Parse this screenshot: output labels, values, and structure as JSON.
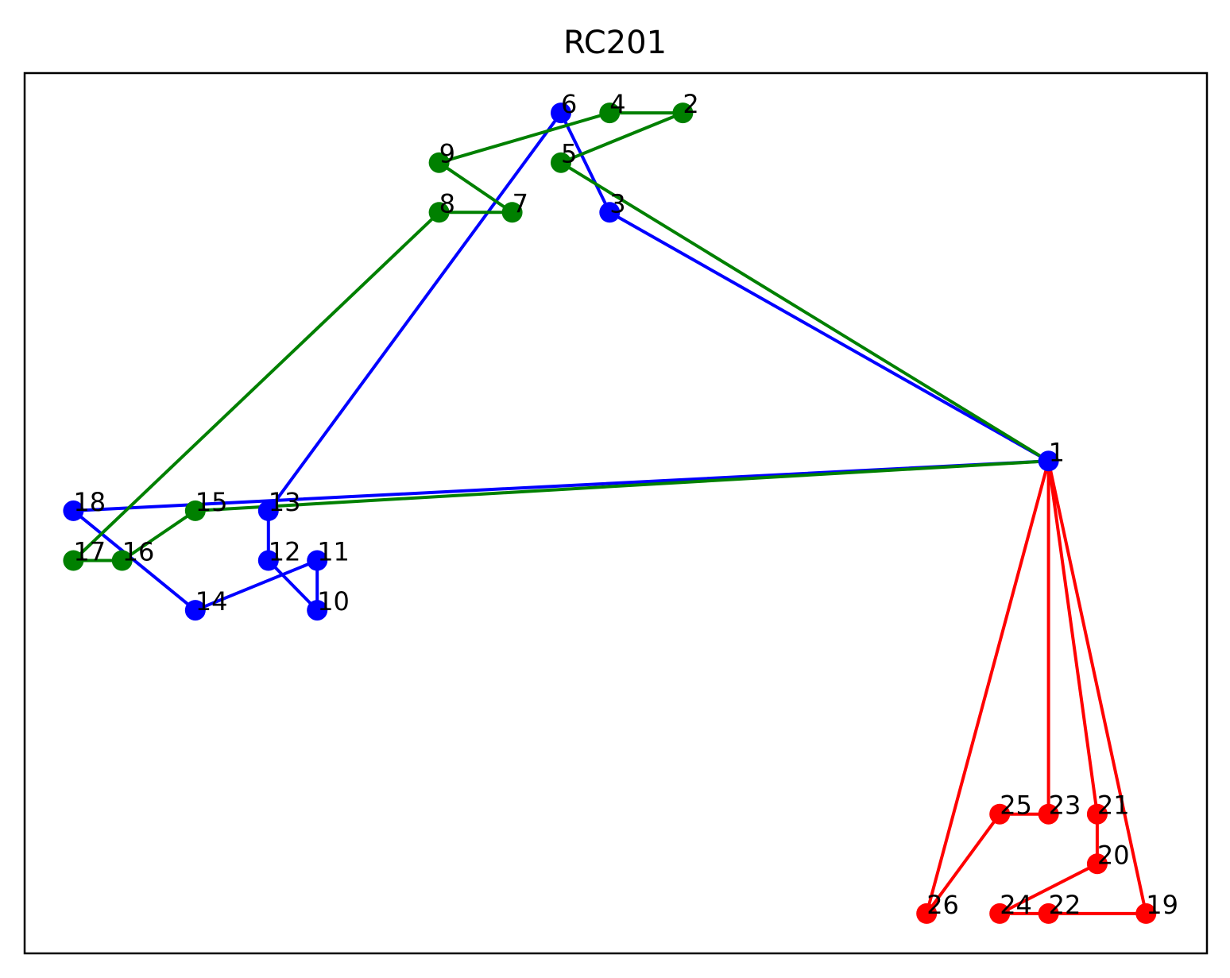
{
  "chart_data": {
    "type": "line",
    "title": "RC201",
    "xlabel": "",
    "ylabel": "",
    "xlim": [
      0,
      48.5
    ],
    "ylim": [
      0,
      17.7
    ],
    "grid": false,
    "axis_ticks": false,
    "nodes": [
      {
        "id": "1",
        "x": 42,
        "y": 9.9
      },
      {
        "id": "2",
        "x": 27,
        "y": 16.9
      },
      {
        "id": "3",
        "x": 24,
        "y": 14.9
      },
      {
        "id": "4",
        "x": 24,
        "y": 16.9
      },
      {
        "id": "5",
        "x": 22,
        "y": 15.9
      },
      {
        "id": "6",
        "x": 22,
        "y": 16.9
      },
      {
        "id": "7",
        "x": 20,
        "y": 14.9
      },
      {
        "id": "8",
        "x": 17,
        "y": 14.9
      },
      {
        "id": "9",
        "x": 17,
        "y": 15.9
      },
      {
        "id": "10",
        "x": 12,
        "y": 6.9
      },
      {
        "id": "11",
        "x": 12,
        "y": 7.9
      },
      {
        "id": "12",
        "x": 10,
        "y": 7.9
      },
      {
        "id": "13",
        "x": 10,
        "y": 8.9
      },
      {
        "id": "14",
        "x": 7,
        "y": 6.9
      },
      {
        "id": "15",
        "x": 7,
        "y": 8.9
      },
      {
        "id": "16",
        "x": 4,
        "y": 7.9
      },
      {
        "id": "17",
        "x": 2,
        "y": 7.9
      },
      {
        "id": "18",
        "x": 2,
        "y": 8.9
      },
      {
        "id": "19",
        "x": 46,
        "y": 0.8
      },
      {
        "id": "20",
        "x": 44,
        "y": 1.8
      },
      {
        "id": "21",
        "x": 44,
        "y": 2.8
      },
      {
        "id": "22",
        "x": 42,
        "y": 0.8
      },
      {
        "id": "23",
        "x": 42,
        "y": 2.8
      },
      {
        "id": "24",
        "x": 40,
        "y": 0.8
      },
      {
        "id": "25",
        "x": 40,
        "y": 2.8
      },
      {
        "id": "26",
        "x": 37,
        "y": 0.8
      }
    ],
    "series": [
      {
        "color": "#0000ff",
        "route": [
          "1",
          "3",
          "6",
          "13",
          "12",
          "10",
          "11",
          "14",
          "18",
          "1"
        ]
      },
      {
        "color": "#008000",
        "route": [
          "1",
          "5",
          "2",
          "4",
          "9",
          "7",
          "8",
          "17",
          "16",
          "15",
          "1"
        ]
      },
      {
        "color": "#ff0000",
        "route": [
          "1",
          "19",
          "22",
          "24",
          "20",
          "21",
          "1",
          "23",
          "25",
          "26",
          "1"
        ]
      }
    ]
  }
}
